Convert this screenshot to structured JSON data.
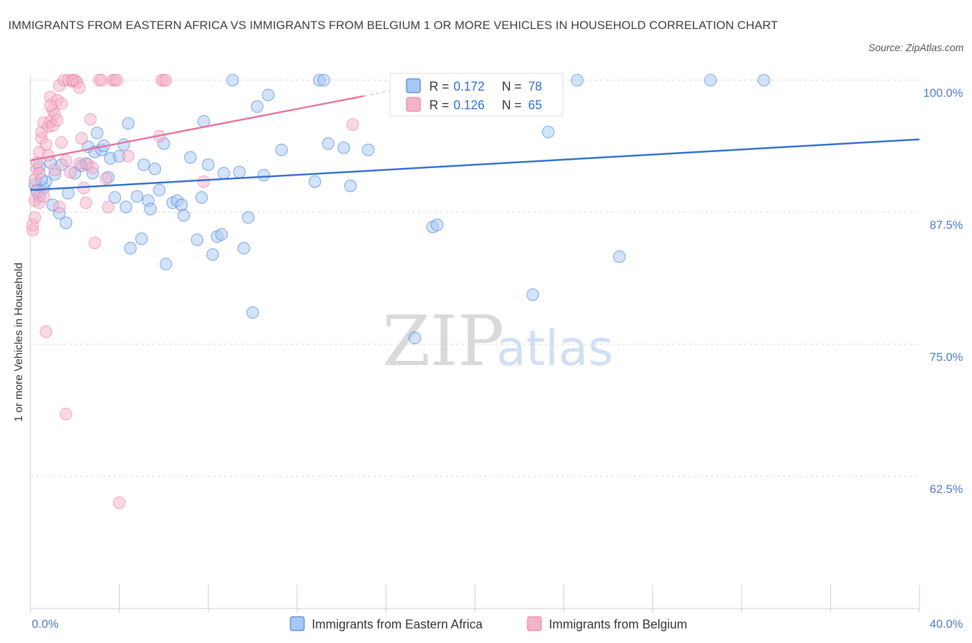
{
  "title": "IMMIGRANTS FROM EASTERN AFRICA VS IMMIGRANTS FROM BELGIUM 1 OR MORE VEHICLES IN HOUSEHOLD CORRELATION CHART",
  "source": "Source: ZipAtlas.com",
  "watermark": {
    "zip": "ZIP",
    "atlas": "atlas"
  },
  "colors": {
    "blue": "#2f6fd0",
    "blue_fill": "#a8c8f5",
    "pink": "#e8739e",
    "pink_fill": "#f5b3ca",
    "grid": "#d6d6d6"
  },
  "legend": {
    "r_label": "R = ",
    "n_label": "N = ",
    "series": [
      {
        "r": "0.172",
        "n": "78"
      },
      {
        "r": "0.126",
        "n": "65"
      }
    ]
  },
  "chart_data": {
    "type": "scatter",
    "title": "IMMIGRANTS FROM EASTERN AFRICA VS IMMIGRANTS FROM BELGIUM 1 OR MORE VEHICLES IN HOUSEHOLD CORRELATION CHART",
    "xlabel": "",
    "ylabel": "1 or more Vehicles in Household",
    "xlim": [
      0,
      40
    ],
    "ylim": [
      50,
      100
    ],
    "x_tick_labels": [
      "0.0%",
      "40.0%"
    ],
    "y_ticks": [
      100,
      87.5,
      75,
      62.5
    ],
    "y_tick_labels": [
      "100.0%",
      "87.5%",
      "75.0%",
      "62.5%"
    ],
    "grid": true,
    "legend_position": "top-center",
    "series": [
      {
        "name": "Immigrants from Eastern Africa",
        "color": "#2f6fd0",
        "r": 0.172,
        "n": 78,
        "trend": {
          "x": [
            0,
            40
          ],
          "y": [
            89.6,
            94.4
          ]
        },
        "points": [
          [
            0.2,
            90.1
          ],
          [
            0.3,
            89.6
          ],
          [
            0.4,
            89.0
          ],
          [
            0.4,
            91.8
          ],
          [
            0.6,
            89.8
          ],
          [
            0.7,
            90.4
          ],
          [
            0.9,
            92.2
          ],
          [
            1.1,
            91.1
          ],
          [
            1.3,
            87.4
          ],
          [
            1.4,
            92.0
          ],
          [
            1.6,
            86.5
          ],
          [
            1.7,
            89.3
          ],
          [
            2.0,
            91.2
          ],
          [
            2.3,
            91.9
          ],
          [
            2.5,
            92.1
          ],
          [
            2.6,
            93.7
          ],
          [
            2.8,
            91.2
          ],
          [
            2.9,
            93.2
          ],
          [
            3.2,
            93.4
          ],
          [
            3.3,
            93.8
          ],
          [
            3.5,
            90.8
          ],
          [
            3.6,
            92.6
          ],
          [
            3.8,
            88.9
          ],
          [
            4.0,
            92.8
          ],
          [
            4.2,
            93.9
          ],
          [
            4.3,
            88.0
          ],
          [
            4.4,
            95.9
          ],
          [
            4.5,
            84.1
          ],
          [
            4.8,
            89.0
          ],
          [
            5.0,
            85.0
          ],
          [
            5.1,
            92.0
          ],
          [
            5.3,
            88.6
          ],
          [
            5.4,
            87.8
          ],
          [
            5.6,
            91.6
          ],
          [
            5.8,
            89.6
          ],
          [
            6.0,
            94.0
          ],
          [
            6.1,
            82.6
          ],
          [
            6.4,
            88.4
          ],
          [
            6.6,
            88.6
          ],
          [
            6.8,
            88.2
          ],
          [
            6.9,
            87.2
          ],
          [
            7.2,
            92.7
          ],
          [
            7.5,
            84.9
          ],
          [
            7.7,
            88.9
          ],
          [
            7.8,
            96.1
          ],
          [
            8.0,
            92.0
          ],
          [
            8.2,
            83.5
          ],
          [
            8.4,
            85.2
          ],
          [
            8.6,
            85.4
          ],
          [
            8.7,
            91.2
          ],
          [
            9.1,
            100.0
          ],
          [
            9.4,
            91.3
          ],
          [
            9.6,
            84.1
          ],
          [
            9.8,
            87.0
          ],
          [
            10.0,
            78.0
          ],
          [
            10.2,
            97.5
          ],
          [
            10.5,
            91.0
          ],
          [
            10.7,
            98.6
          ],
          [
            11.3,
            93.4
          ],
          [
            12.8,
            90.4
          ],
          [
            13.0,
            100.0
          ],
          [
            13.2,
            100.0
          ],
          [
            13.4,
            94.0
          ],
          [
            14.1,
            93.6
          ],
          [
            14.4,
            90.0
          ],
          [
            15.2,
            93.4
          ],
          [
            17.3,
            75.6
          ],
          [
            18.1,
            86.1
          ],
          [
            18.3,
            86.3
          ],
          [
            22.6,
            79.7
          ],
          [
            23.3,
            95.1
          ],
          [
            24.6,
            100.0
          ],
          [
            26.5,
            83.3
          ],
          [
            30.6,
            100.0
          ],
          [
            33.0,
            100.0
          ],
          [
            1.0,
            88.2
          ],
          [
            3.0,
            95.0
          ],
          [
            0.5,
            90.6
          ]
        ]
      },
      {
        "name": "Immigrants from Belgium",
        "color": "#e8739e",
        "r": 0.126,
        "n": 65,
        "trend": {
          "x": [
            0,
            15
          ],
          "y": [
            92.4,
            98.5
          ]
        },
        "points": [
          [
            0.1,
            85.8
          ],
          [
            0.1,
            86.3
          ],
          [
            0.2,
            87.0
          ],
          [
            0.2,
            88.6
          ],
          [
            0.3,
            89.4
          ],
          [
            0.3,
            91.6
          ],
          [
            0.3,
            92.2
          ],
          [
            0.4,
            93.2
          ],
          [
            0.4,
            88.4
          ],
          [
            0.5,
            94.5
          ],
          [
            0.5,
            95.1
          ],
          [
            0.6,
            89.0
          ],
          [
            0.6,
            96.0
          ],
          [
            0.7,
            76.2
          ],
          [
            0.7,
            93.9
          ],
          [
            0.8,
            95.6
          ],
          [
            0.8,
            92.9
          ],
          [
            0.9,
            96.1
          ],
          [
            0.9,
            98.4
          ],
          [
            1.0,
            95.7
          ],
          [
            1.0,
            97.2
          ],
          [
            1.1,
            96.8
          ],
          [
            1.1,
            91.5
          ],
          [
            1.2,
            98.1
          ],
          [
            1.2,
            96.2
          ],
          [
            1.3,
            99.5
          ],
          [
            1.3,
            88.0
          ],
          [
            1.4,
            97.8
          ],
          [
            1.4,
            94.1
          ],
          [
            1.5,
            100.0
          ],
          [
            1.6,
            68.4
          ],
          [
            1.7,
            100.0
          ],
          [
            1.8,
            91.3
          ],
          [
            1.9,
            99.9
          ],
          [
            2.0,
            100.0
          ],
          [
            2.1,
            99.8
          ],
          [
            2.2,
            99.3
          ],
          [
            2.3,
            94.5
          ],
          [
            2.4,
            89.8
          ],
          [
            2.5,
            88.4
          ],
          [
            2.6,
            92.0
          ],
          [
            2.7,
            96.3
          ],
          [
            2.9,
            84.6
          ],
          [
            3.1,
            100.0
          ],
          [
            3.2,
            100.0
          ],
          [
            3.4,
            90.7
          ],
          [
            3.7,
            100.0
          ],
          [
            3.8,
            100.0
          ],
          [
            3.9,
            100.0
          ],
          [
            4.0,
            60.0
          ],
          [
            4.4,
            92.8
          ],
          [
            5.8,
            94.7
          ],
          [
            5.9,
            100.0
          ],
          [
            6.0,
            100.0
          ],
          [
            6.1,
            100.0
          ],
          [
            7.8,
            90.4
          ],
          [
            14.5,
            95.8
          ],
          [
            2.2,
            92.1
          ],
          [
            1.9,
            100.0
          ],
          [
            0.9,
            97.6
          ],
          [
            3.5,
            88.0
          ],
          [
            0.2,
            90.6
          ],
          [
            1.6,
            92.4
          ],
          [
            2.8,
            91.7
          ],
          [
            0.4,
            91.2
          ]
        ]
      }
    ]
  }
}
